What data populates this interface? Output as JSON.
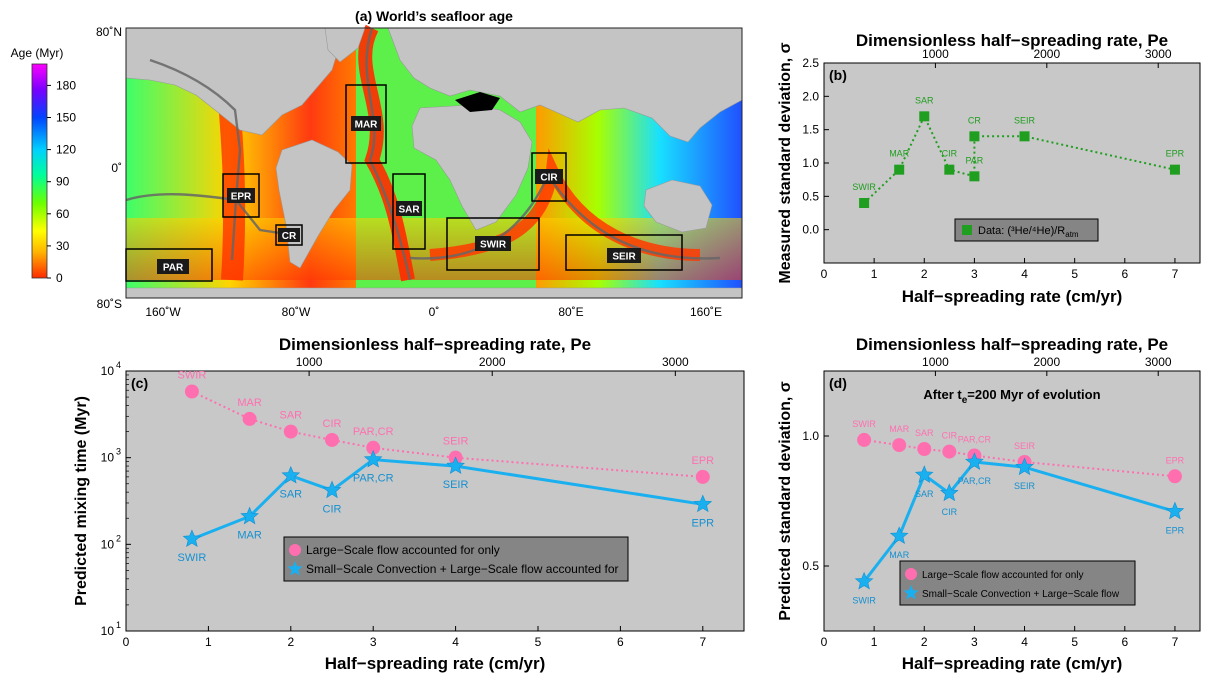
{
  "map": {
    "title": "(a) World’s seafloor age",
    "colorbar_label": "Age (Myr)",
    "colorbar_ticks": [
      "180",
      "150",
      "120",
      "90",
      "60",
      "30",
      "0"
    ],
    "colorbar_range": [
      0,
      200
    ],
    "colorbar_colors": [
      "#ff2a00",
      "#ffb300",
      "#ffff00",
      "#6cff00",
      "#00ff9a",
      "#00d0ff",
      "#0044ff",
      "#7a00ff",
      "#ff00ff"
    ],
    "lat_labels": [
      "80˚N",
      "0˚",
      "80˚S"
    ],
    "lon_labels": [
      "160˚W",
      "80˚W",
      "0˚",
      "80˚E",
      "160˚E"
    ],
    "regions": [
      "MAR",
      "EPR",
      "SAR",
      "CIR",
      "CR",
      "SWIR",
      "SEIR",
      "PAR"
    ]
  },
  "chart_data": [
    {
      "panel": "b",
      "type": "line",
      "label": "(b)",
      "xlabel": "Half−spreading rate (cm/yr)",
      "ylabel": "Measured standard deviation, σ",
      "top_axis_label": "Dimensionless half−spreading rate, Pe",
      "xlim": [
        0,
        7.5
      ],
      "ylim": [
        -0.5,
        2.5
      ],
      "xticks": [
        "0",
        "1",
        "2",
        "3",
        "4",
        "5",
        "6",
        "7"
      ],
      "yticks": [
        "0.0",
        "0.5",
        "1.0",
        "1.5",
        "2.0",
        "2.5"
      ],
      "top_ticks": [
        "1000",
        "2000",
        "3000"
      ],
      "series": [
        {
          "name": "Data: (³He/⁴He)/R",
          "name_subscript": "atm",
          "color": "#1f9e1f",
          "marker": "square",
          "line": "dotted",
          "points": [
            {
              "label": "SWIR",
              "x": 0.8,
              "y": 0.4
            },
            {
              "label": "MAR",
              "x": 1.5,
              "y": 0.9
            },
            {
              "label": "SAR",
              "x": 2.0,
              "y": 1.7
            },
            {
              "label": "CIR",
              "x": 2.5,
              "y": 0.9
            },
            {
              "label": "PAR",
              "x": 3.0,
              "y": 0.8
            },
            {
              "label": "CR",
              "x": 3.0,
              "y": 1.4
            },
            {
              "label": "SEIR",
              "x": 4.0,
              "y": 1.4
            },
            {
              "label": "EPR",
              "x": 7.0,
              "y": 0.9
            }
          ]
        }
      ]
    },
    {
      "panel": "c",
      "type": "line",
      "label": "(c)",
      "xlabel": "Half−spreading rate (cm/yr)",
      "ylabel": "Predicted mixing time (Myr)",
      "top_axis_label": "Dimensionless half−spreading rate, Pe",
      "xlim": [
        0,
        7.5
      ],
      "ylim": [
        10,
        10000
      ],
      "yscale": "log",
      "xticks": [
        "0",
        "1",
        "2",
        "3",
        "4",
        "5",
        "6",
        "7"
      ],
      "yticks": [
        "10",
        "10",
        "10",
        "10"
      ],
      "ytick_exponents": [
        "1",
        "2",
        "3",
        "4"
      ],
      "top_ticks": [
        "1000",
        "2000",
        "3000"
      ],
      "series": [
        {
          "name": "Large−Scale flow accounted for only",
          "color": "#ff6fb0",
          "marker": "circle",
          "line": "dotted",
          "points": [
            {
              "label": "SWIR",
              "x": 0.8,
              "y": 5800
            },
            {
              "label": "MAR",
              "x": 1.5,
              "y": 2800
            },
            {
              "label": "SAR",
              "x": 2.0,
              "y": 2000
            },
            {
              "label": "CIR",
              "x": 2.5,
              "y": 1600
            },
            {
              "label": "PAR,CR",
              "x": 3.0,
              "y": 1300
            },
            {
              "label": "SEIR",
              "x": 4.0,
              "y": 1000
            },
            {
              "label": "EPR",
              "x": 7.0,
              "y": 600
            }
          ]
        },
        {
          "name": "Small−Scale Convection + Large−Scale flow accounted for",
          "color": "#1ab0f0",
          "marker": "star",
          "line": "solid",
          "points": [
            {
              "label": "SWIR",
              "x": 0.8,
              "y": 115
            },
            {
              "label": "MAR",
              "x": 1.5,
              "y": 210
            },
            {
              "label": "SAR",
              "x": 2.0,
              "y": 620
            },
            {
              "label": "CIR",
              "x": 2.5,
              "y": 420
            },
            {
              "label": "PAR,CR",
              "x": 3.0,
              "y": 950
            },
            {
              "label": "SEIR",
              "x": 4.0,
              "y": 800
            },
            {
              "label": "EPR",
              "x": 7.0,
              "y": 290
            }
          ]
        }
      ]
    },
    {
      "panel": "d",
      "type": "line",
      "label": "(d)",
      "annotation": "After t",
      "annotation_sub": "e",
      "annotation_rest": "=200 Myr of evolution",
      "xlabel": "Half−spreading rate (cm/yr)",
      "ylabel": "Predicted standard deviation, σ",
      "top_axis_label": "Dimensionless half−spreading rate, Pe",
      "xlim": [
        0,
        7.5
      ],
      "ylim": [
        0.25,
        1.25
      ],
      "xticks": [
        "0",
        "1",
        "2",
        "3",
        "4",
        "5",
        "6",
        "7"
      ],
      "yticks": [
        "0.5",
        "1.0"
      ],
      "top_ticks": [
        "1000",
        "2000",
        "3000"
      ],
      "series": [
        {
          "name": "Large−Scale flow accounted for only",
          "color": "#ff6fb0",
          "marker": "circle",
          "line": "dotted",
          "points": [
            {
              "label": "SWIR",
              "x": 0.8,
              "y": 0.985
            },
            {
              "label": "MAR",
              "x": 1.5,
              "y": 0.965
            },
            {
              "label": "SAR",
              "x": 2.0,
              "y": 0.95
            },
            {
              "label": "CIR",
              "x": 2.5,
              "y": 0.94
            },
            {
              "label": "PAR,CR",
              "x": 3.0,
              "y": 0.925
            },
            {
              "label": "SEIR",
              "x": 4.0,
              "y": 0.9
            },
            {
              "label": "EPR",
              "x": 7.0,
              "y": 0.845
            }
          ]
        },
        {
          "name": "Small−Scale Convection + Large−Scale flow",
          "color": "#1ab0f0",
          "marker": "star",
          "line": "solid",
          "points": [
            {
              "label": "SWIR",
              "x": 0.8,
              "y": 0.44
            },
            {
              "label": "MAR",
              "x": 1.5,
              "y": 0.615
            },
            {
              "label": "SAR",
              "x": 2.0,
              "y": 0.85
            },
            {
              "label": "CIR",
              "x": 2.5,
              "y": 0.78
            },
            {
              "label": "PAR,CR",
              "x": 3.0,
              "y": 0.9
            },
            {
              "label": "SEIR",
              "x": 4.0,
              "y": 0.88
            },
            {
              "label": "EPR",
              "x": 7.0,
              "y": 0.71
            }
          ]
        }
      ]
    }
  ]
}
